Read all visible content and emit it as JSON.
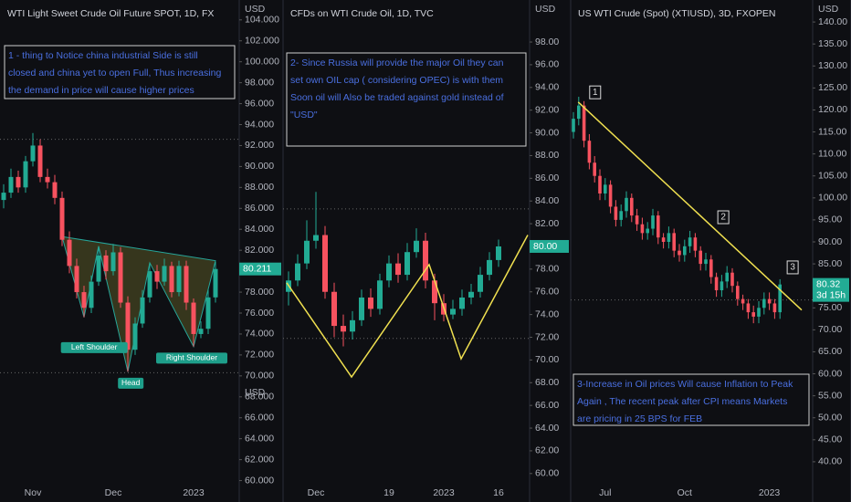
{
  "chart_data": [
    {
      "type": "candlestick",
      "title": "WTI Light Sweet Crude Oil Future SPOT, 1D, FX",
      "y_unit": "USD",
      "y_unit_2": "USD",
      "categories": [
        null,
        null,
        null,
        null,
        "Nov",
        null,
        null,
        null,
        null,
        null,
        null,
        null,
        null,
        null,
        null,
        "Dec",
        null,
        null,
        null,
        null,
        null,
        null,
        null,
        null,
        null,
        null,
        "2023",
        null,
        null,
        null
      ],
      "open": [
        86.8,
        87.5,
        89.0,
        88.0,
        90.5,
        92.0,
        89.0,
        88.5,
        87.0,
        83.0,
        80.5,
        78.0,
        76.5,
        79.0,
        81.5,
        80.0,
        81.8,
        77.0,
        72.5,
        75.0,
        77.5,
        80.0,
        79.0,
        80.5,
        78.0,
        80.5,
        77.0,
        74.0,
        74.5,
        77.5
      ],
      "high": [
        88.3,
        89.8,
        89.6,
        91.0,
        93.2,
        92.6,
        89.8,
        89.2,
        87.6,
        83.8,
        81.2,
        78.6,
        79.6,
        82.4,
        82.0,
        82.6,
        82.3,
        77.6,
        75.6,
        78.2,
        80.8,
        80.6,
        81.2,
        80.9,
        81.0,
        81.0,
        77.4,
        75.2,
        78.3,
        80.9
      ],
      "low": [
        86.0,
        87.0,
        87.5,
        87.5,
        90.0,
        88.5,
        87.9,
        86.4,
        82.4,
        79.8,
        77.4,
        75.6,
        76.0,
        78.6,
        79.2,
        79.6,
        76.5,
        70.4,
        72.0,
        74.6,
        77.0,
        78.3,
        78.6,
        77.5,
        77.6,
        76.3,
        72.8,
        73.6,
        74.0,
        77.0
      ],
      "close": [
        87.5,
        89.0,
        88.0,
        90.5,
        92.0,
        89.0,
        88.5,
        87.0,
        83.0,
        80.5,
        78.0,
        76.5,
        79.0,
        81.5,
        80.0,
        81.8,
        77.0,
        72.5,
        75.0,
        77.5,
        80.0,
        79.0,
        80.5,
        78.0,
        80.5,
        77.0,
        74.0,
        74.5,
        77.5,
        80.211
      ],
      "up_color": "#22ab94",
      "down_color": "#f7525f",
      "ylim": [
        59.7,
        105.9
      ],
      "yticks": [
        {
          "value": 60,
          "label": "60.000"
        },
        {
          "value": 62,
          "label": "62.000"
        },
        {
          "value": 64,
          "label": "64.000"
        },
        {
          "value": 66,
          "label": "66.000"
        },
        {
          "value": 68,
          "label": "68.000"
        },
        {
          "value": 70,
          "label": "70.000"
        },
        {
          "value": 72,
          "label": "72.000"
        },
        {
          "value": 74,
          "label": "74.000"
        },
        {
          "value": 76,
          "label": "76.000"
        },
        {
          "value": 78,
          "label": "78.000"
        },
        {
          "value": 80,
          "label": "80.000"
        },
        {
          "value": 82,
          "label": "82.000"
        },
        {
          "value": 84,
          "label": "84.000"
        },
        {
          "value": 86,
          "label": "86.000"
        },
        {
          "value": 88,
          "label": "88.000"
        },
        {
          "value": 90,
          "label": "90.000"
        },
        {
          "value": 92,
          "label": "92.000"
        },
        {
          "value": 94,
          "label": "94.000"
        },
        {
          "value": 96,
          "label": "96.000"
        },
        {
          "value": 98,
          "label": "98.000"
        },
        {
          "value": 100,
          "label": "100.000"
        },
        {
          "value": 102,
          "label": "102.000"
        },
        {
          "value": 104,
          "label": "104.000"
        }
      ],
      "last_price": {
        "value": 80.211,
        "label": "80.211"
      },
      "hlines": [
        92.6,
        70.3
      ],
      "pattern": {
        "x": [
          8,
          11,
          13,
          17,
          20,
          26,
          29
        ],
        "y": [
          83.3,
          75.6,
          82.4,
          70.4,
          80.8,
          72.8,
          81.0
        ]
      },
      "labels": [
        {
          "text": "Left Shoulder",
          "x": 12.4,
          "y": 72.7
        },
        {
          "text": "Head",
          "x": 17.4,
          "y": 69.3
        },
        {
          "text": "Right Shoulder",
          "x": 25.75,
          "y": 71.7
        }
      ],
      "note": [
        "1 -  thing to Notice china industrial Side is still",
        "closed and china yet to open Full, Thus increasing",
        " the demand in price will cause higher prices"
      ]
    },
    {
      "type": "candlestick",
      "title": "CFDs on WTI Crude Oil, 1D, TVC",
      "y_unit": "USD",
      "categories": [
        null,
        null,
        null,
        "Dec",
        null,
        null,
        null,
        null,
        null,
        null,
        null,
        "19",
        null,
        null,
        null,
        null,
        null,
        "2023",
        null,
        null,
        null,
        null,
        null,
        "16"
      ],
      "open": [
        76.0,
        77.0,
        78.5,
        80.5,
        81.0,
        76.0,
        73.0,
        72.5,
        73.5,
        75.5,
        74.5,
        77.0,
        78.5,
        77.5,
        79.5,
        80.5,
        77.0,
        75.0,
        74.0,
        74.5,
        75.5,
        76.0,
        77.5,
        78.8
      ],
      "high": [
        77.8,
        79.3,
        82.3,
        84.8,
        81.8,
        76.8,
        74.0,
        74.3,
        76.2,
        76.3,
        77.6,
        79.2,
        79.4,
        80.3,
        81.6,
        81.2,
        77.6,
        75.8,
        75.3,
        76.2,
        76.7,
        78.2,
        79.5,
        80.6
      ],
      "low": [
        74.8,
        76.5,
        78.0,
        79.8,
        75.4,
        72.0,
        71.2,
        71.8,
        73.0,
        73.8,
        74.0,
        76.4,
        76.8,
        77.0,
        79.0,
        76.3,
        73.5,
        73.4,
        73.6,
        73.9,
        74.9,
        75.5,
        77.0,
        78.2
      ],
      "close": [
        77.0,
        78.5,
        80.5,
        81.0,
        76.0,
        73.0,
        72.5,
        73.5,
        75.5,
        74.5,
        77.0,
        78.5,
        77.5,
        79.5,
        80.5,
        77.0,
        75.0,
        74.0,
        74.5,
        75.5,
        76.0,
        77.5,
        78.8,
        80.0
      ],
      "up_color": "#22ab94",
      "down_color": "#f7525f",
      "ylim": [
        59.1,
        101.7
      ],
      "yticks": [
        {
          "value": 60,
          "label": "60.00"
        },
        {
          "value": 62,
          "label": "62.00"
        },
        {
          "value": 64,
          "label": "64.00"
        },
        {
          "value": 66,
          "label": "66.00"
        },
        {
          "value": 68,
          "label": "68.00"
        },
        {
          "value": 70,
          "label": "70.00"
        },
        {
          "value": 72,
          "label": "72.00"
        },
        {
          "value": 74,
          "label": "74.00"
        },
        {
          "value": 76,
          "label": "76.00"
        },
        {
          "value": 78,
          "label": "78.00"
        },
        {
          "value": 80,
          "label": "80.00"
        },
        {
          "value": 82,
          "label": "82.00"
        },
        {
          "value": 84,
          "label": "84.00"
        },
        {
          "value": 86,
          "label": "86.00"
        },
        {
          "value": 88,
          "label": "88.00"
        },
        {
          "value": 90,
          "label": "90.00"
        },
        {
          "value": 92,
          "label": "92.00"
        },
        {
          "value": 94,
          "label": "94.00"
        },
        {
          "value": 96,
          "label": "96.00"
        },
        {
          "value": 98,
          "label": "98.00"
        }
      ],
      "last_price": {
        "value": 80,
        "label": "80.00"
      },
      "hlines": [
        83.3,
        71.9
      ],
      "trendline": {
        "x": [
          -0.2,
          6.9,
          15.4,
          18.9,
          26.2
        ],
        "y": [
          76.8,
          68.5,
          78.4,
          70.1,
          81.0
        ]
      },
      "trendline_color": "#f0e050",
      "note": [
        "2- Since Russia will provide the major Oil they can",
        "set own OIL cap ( considering OPEC) is with them",
        "Soon oil will Also be traded against gold instead of",
        "\"USD\""
      ]
    },
    {
      "type": "candlestick",
      "title": "US WTI Crude (Spot) (XTIUSD), 3D, FXOPEN",
      "y_unit": "USD",
      "categories": [
        null,
        null,
        null,
        null,
        null,
        null,
        "Jul",
        null,
        null,
        null,
        null,
        null,
        null,
        null,
        null,
        null,
        null,
        null,
        null,
        null,
        null,
        "Oct",
        null,
        null,
        null,
        null,
        null,
        null,
        null,
        null,
        null,
        null,
        null,
        null,
        null,
        null,
        null,
        "2023",
        null,
        null
      ],
      "open": [
        115,
        118,
        121,
        113,
        108,
        105,
        101,
        103,
        98,
        95,
        97,
        100,
        96,
        94,
        92,
        93,
        96,
        91,
        90,
        92,
        88,
        87,
        89,
        91,
        88,
        85,
        86,
        82,
        79,
        81,
        83,
        80,
        77,
        76,
        74,
        73,
        75,
        77,
        76,
        74
      ],
      "high": [
        119.5,
        123,
        122,
        114.5,
        109.5,
        106.5,
        104.5,
        104,
        99.5,
        98.5,
        101.5,
        101,
        97.5,
        95.5,
        94.5,
        97.5,
        97,
        92,
        93.5,
        93,
        89.5,
        90.5,
        92.5,
        92,
        89,
        87.5,
        87,
        83,
        82.5,
        84.5,
        84,
        81,
        78,
        77,
        75.5,
        76.5,
        78.5,
        78.5,
        77,
        81.5
      ],
      "low": [
        113.5,
        116.5,
        111.5,
        106.5,
        103.5,
        99.5,
        99.5,
        96.5,
        93.5,
        93.5,
        95.5,
        94.5,
        92.5,
        90.5,
        90.5,
        91.5,
        89.5,
        88.5,
        88.5,
        86.5,
        85.5,
        85.5,
        87.5,
        86.5,
        83.5,
        83.5,
        80.5,
        77.5,
        77.5,
        79.5,
        78.5,
        75.5,
        74.5,
        72.5,
        71.5,
        71.5,
        73.5,
        74.5,
        72.5,
        72.5
      ],
      "close": [
        118,
        121,
        113,
        108,
        105,
        101,
        103,
        98,
        95,
        97,
        100,
        96,
        94,
        92,
        93,
        96,
        91,
        90,
        92,
        88,
        87,
        89,
        91,
        88,
        85,
        86,
        82,
        79,
        81,
        83,
        80,
        77,
        76,
        74,
        73,
        75,
        77,
        76,
        74,
        80.32
      ],
      "up_color": "#22ab94",
      "down_color": "#f7525f",
      "ylim": [
        35,
        145
      ],
      "yticks": [
        {
          "value": 40,
          "label": "40.00"
        },
        {
          "value": 45,
          "label": "45.00"
        },
        {
          "value": 50,
          "label": "50.00"
        },
        {
          "value": 55,
          "label": "55.00"
        },
        {
          "value": 60,
          "label": "60.00"
        },
        {
          "value": 65,
          "label": "65.00"
        },
        {
          "value": 70,
          "label": "70.00"
        },
        {
          "value": 75,
          "label": "75.00"
        },
        {
          "value": 80,
          "label": "80.00"
        },
        {
          "value": 85,
          "label": "85.00"
        },
        {
          "value": 90,
          "label": "90.00"
        },
        {
          "value": 95,
          "label": "95.00"
        },
        {
          "value": 100,
          "label": "100.00"
        },
        {
          "value": 105,
          "label": "105.00"
        },
        {
          "value": 110,
          "label": "110.00"
        },
        {
          "value": 115,
          "label": "115.00"
        },
        {
          "value": 120,
          "label": "120.00"
        },
        {
          "value": 125,
          "label": "125.00"
        },
        {
          "value": 130,
          "label": "130.00"
        },
        {
          "value": 135,
          "label": "135.00"
        },
        {
          "value": 140,
          "label": "140.00"
        }
      ],
      "last_price": {
        "value": 80.32,
        "label": "80.32",
        "countdown": "3d 15h"
      },
      "hlines": [
        76.8
      ],
      "trendline": {
        "x": [
          0.9,
          43.1
        ],
        "y": [
          121.8,
          74.5
        ]
      },
      "trendline_color": "#f0e050",
      "boxes": [
        {
          "text": "1",
          "x": 4.1,
          "y": 124.0
        },
        {
          "text": "2",
          "x": 28.3,
          "y": 95.6
        },
        {
          "text": "3",
          "x": 41.4,
          "y": 84.2
        }
      ],
      "note": [
        "3-Increase in Oil prices Will cause Inflation to Peak",
        "Again , The recent peak after CPI  means Markets",
        "are pricing in 25 BPS for FEB"
      ]
    }
  ]
}
